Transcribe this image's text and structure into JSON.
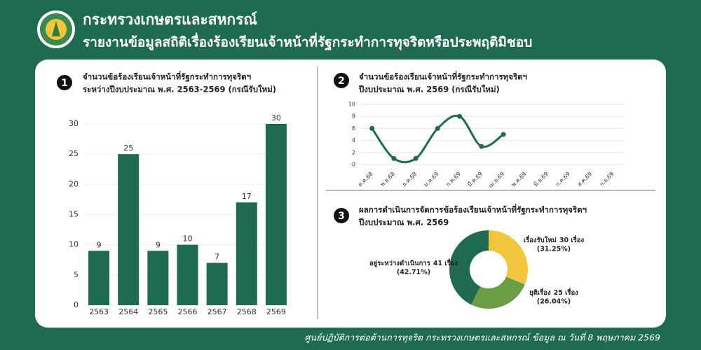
{
  "header": {
    "ministry": "กระทรวงเกษตรและสหกรณ์",
    "title": "รายงานข้อมูลสถิติเรื่องร้องเรียนเจ้าหน้าที่รัฐกระทำการทุจริตหรือประพฤติมิชอบ"
  },
  "footer": "ศูนย์ปฏิบัติการต่อต้านการทุจริต กระทรวงเกษตรและสหกรณ์ ข้อมูล ณ วันที่ 8 พฤษภาคม 2569",
  "chart_data": [
    {
      "type": "bar",
      "number": "1",
      "title": [
        "จำนวนข้อร้องเรียนเจ้าหน้าที่รัฐกระทำการทุจริตฯ",
        "ระหว่างปีงบประมาณ พ.ศ. 2563-2569 (กรณีรับใหม่)"
      ],
      "categories": [
        "2563",
        "2564",
        "2565",
        "2566",
        "2567",
        "2568",
        "2569"
      ],
      "values": [
        9,
        25,
        9,
        10,
        7,
        17,
        30
      ],
      "color": "#1e6b50",
      "ylim": [
        0,
        30
      ],
      "yticks": [
        0,
        5,
        10,
        15,
        20,
        25,
        30
      ],
      "grid": true
    },
    {
      "type": "line",
      "number": "2",
      "title": [
        "จำนวนข้อร้องเรียนเจ้าหน้าที่รัฐกระทำการทุจริตฯ",
        "ปีงบประมาณ พ.ศ. 2569 (กรณีรับใหม่)"
      ],
      "categories": [
        "ต.ค.68",
        "พ.ย.68",
        "ธ.ค.68",
        "ม.ค.69",
        "ก.พ.69",
        "มี.ค.69",
        "เม.ย.69",
        "พ.ค.69",
        "มิ.ย.69",
        "ก.ค.69",
        "ส.ค.69",
        "ก.ย.69"
      ],
      "values": [
        6,
        1,
        1,
        6,
        8,
        3,
        5,
        null,
        null,
        null,
        null,
        null
      ],
      "color": "#1e6b50",
      "ylim": [
        0,
        10
      ],
      "yticks": [
        0,
        2,
        4,
        6,
        8,
        10
      ],
      "grid": true
    },
    {
      "type": "pie",
      "number": "3",
      "title": [
        "ผลการดำเนินการจัดการข้อร้องเรียนเจ้าหน้าที่รัฐกระทำการทุจริตฯ",
        "ปีงบประมาณ พ.ศ. 2569"
      ],
      "categories": [
        "เรื่องรับใหม่",
        "ยุติเรื่อง",
        "อยู่ระหว่างดำเนินการ"
      ],
      "values": [
        30,
        25,
        41
      ],
      "value_labels": [
        "30 เรื่อง",
        "25 เรื่อง",
        "41 เรื่อง"
      ],
      "percents": [
        31.25,
        26.04,
        42.71
      ],
      "percent_labels": [
        "(31.25%)",
        "(26.04%)",
        "(42.71%)"
      ],
      "colors": [
        "#f2c53d",
        "#6a9e45",
        "#1e6b50"
      ],
      "donut": true
    }
  ]
}
